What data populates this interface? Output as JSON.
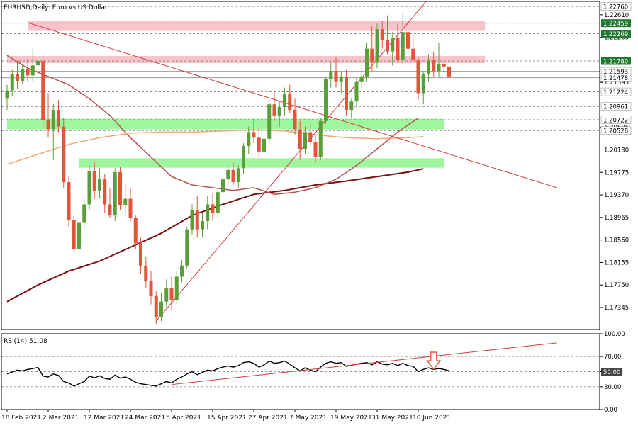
{
  "window": {
    "title": "EURUSD,Daily: Euro vs US Dollar"
  },
  "chart_data": [
    {
      "type": "candlestick",
      "title": "EURUSD,Daily: Euro vs US Dollar",
      "ylim": [
        1.1695,
        1.2285
      ],
      "y_ticks": [
        1.2261,
        1.22205,
        1.21395,
        1.20585,
        1.2018,
        1.19775,
        1.1937,
        1.18965,
        1.1856,
        1.18155,
        1.1775,
        1.17345
      ],
      "y_tick_labels": [
        "1.22610",
        "1.22205",
        "1.21395",
        "1.20585",
        "1.20180",
        "1.19775",
        "1.19370",
        "1.18965",
        "1.18560",
        "1.18155",
        "1.17750",
        "1.17345"
      ],
      "x_tick_labels": [
        {
          "index": 0,
          "label": "18 Feb 2021"
        },
        {
          "index": 8,
          "label": "2 Mar 2021"
        },
        {
          "index": 16,
          "label": "12 Mar 2021"
        },
        {
          "index": 24,
          "label": "24 Mar 2021"
        },
        {
          "index": 32,
          "label": "5 Apr 2021"
        },
        {
          "index": 40,
          "label": "15 Apr 2021"
        },
        {
          "index": 48,
          "label": "27 Apr 2021"
        },
        {
          "index": 56,
          "label": "7 May 2021"
        },
        {
          "index": 64,
          "label": "19 May 2021"
        },
        {
          "index": 72,
          "label": "31 May 2021"
        },
        {
          "index": 80,
          "label": "10 Jun 2021"
        }
      ],
      "price_lines": [
        {
          "value": 1.2276,
          "label": "1.22760",
          "style": "dashed"
        },
        {
          "value": 1.22459,
          "label": "1.22459",
          "style": "dashed",
          "highlight": true
        },
        {
          "value": 1.22269,
          "label": "1.22269",
          "style": "dashed",
          "highlight": true
        },
        {
          "value": 1.2178,
          "label": "1.21780",
          "style": "dashed",
          "highlight": true
        },
        {
          "value": 1.21593,
          "label": "1.21593",
          "style": "solid"
        },
        {
          "value": 1.21478,
          "label": "1.21478",
          "style": "solid"
        },
        {
          "value": 1.21224,
          "label": "1.21224",
          "style": "dashed"
        },
        {
          "value": 1.20961,
          "label": "1.20961",
          "style": "dashed"
        },
        {
          "value": 1.20722,
          "label": "1.20722",
          "style": "dashed"
        },
        {
          "value": 1.20528,
          "label": "1.20528",
          "style": "dashed"
        }
      ],
      "zones": [
        {
          "kind": "resistance",
          "x_from": 4.0,
          "x_to": 93.0,
          "y_low": 1.2232,
          "y_high": 1.225,
          "color": "#f9c0c8"
        },
        {
          "kind": "resistance",
          "x_from": 0.0,
          "x_to": 93.0,
          "y_low": 1.2174,
          "y_high": 1.2187,
          "color": "#f9c0c8"
        },
        {
          "kind": "support",
          "x_from": 0.0,
          "x_to": 85.0,
          "y_low": 1.2055,
          "y_high": 1.2074,
          "color": "#9af59a"
        },
        {
          "kind": "support",
          "x_from": 14.0,
          "x_to": 85.0,
          "y_low": 1.1986,
          "y_high": 1.2003,
          "color": "#9af59a"
        }
      ],
      "trendlines": [
        {
          "from": [
            4.0,
            1.2247
          ],
          "to": [
            107.0,
            1.195
          ],
          "color": "#d43a3a"
        },
        {
          "from": [
            29.0,
            1.171
          ],
          "to": [
            82.0,
            1.229
          ],
          "color": "#d43a3a"
        }
      ],
      "moving_averages": [
        {
          "color": "#7a1010",
          "width": 2.0,
          "points": [
            [
              0,
              1.1745
            ],
            [
              6,
              1.1775
            ],
            [
              12,
              1.18
            ],
            [
              18,
              1.1818
            ],
            [
              24,
              1.1843
            ],
            [
              30,
              1.1868
            ],
            [
              36,
              1.19
            ],
            [
              42,
              1.192
            ],
            [
              48,
              1.1938
            ],
            [
              54,
              1.1945
            ],
            [
              60,
              1.1955
            ],
            [
              66,
              1.1962
            ],
            [
              72,
              1.197
            ],
            [
              78,
              1.1978
            ],
            [
              81,
              1.1984
            ]
          ]
        },
        {
          "color": "#b55050",
          "width": 1.5,
          "points": [
            [
              0,
              1.2188
            ],
            [
              4,
              1.2165
            ],
            [
              8,
              1.215
            ],
            [
              12,
              1.2135
            ],
            [
              16,
              1.211
            ],
            [
              20,
              1.208
            ],
            [
              24,
              1.204
            ],
            [
              28,
              1.2005
            ],
            [
              32,
              1.197
            ],
            [
              36,
              1.1955
            ],
            [
              40,
              1.195
            ],
            [
              44,
              1.1945
            ],
            [
              48,
              1.195
            ],
            [
              52,
              1.1938
            ],
            [
              56,
              1.1942
            ],
            [
              60,
              1.195
            ],
            [
              64,
              1.1965
            ],
            [
              68,
              1.199
            ],
            [
              72,
              1.202
            ],
            [
              76,
              1.205
            ],
            [
              80,
              1.2075
            ]
          ]
        },
        {
          "color": "#f0a878",
          "width": 1.5,
          "points": [
            [
              0,
              1.1992
            ],
            [
              6,
              1.201
            ],
            [
              12,
              1.2028
            ],
            [
              18,
              1.204
            ],
            [
              24,
              1.2048
            ],
            [
              30,
              1.205
            ],
            [
              36,
              1.205
            ],
            [
              42,
              1.2052
            ],
            [
              48,
              1.2054
            ],
            [
              54,
              1.2052
            ],
            [
              60,
              1.2045
            ],
            [
              66,
              1.204
            ],
            [
              72,
              1.2038
            ],
            [
              78,
              1.204
            ],
            [
              81,
              1.2042
            ]
          ]
        }
      ],
      "candles": [
        [
          1.211,
          1.2135,
          1.209,
          1.2125
        ],
        [
          1.2125,
          1.2162,
          1.2115,
          1.2155
        ],
        [
          1.2155,
          1.2178,
          1.2128,
          1.2142
        ],
        [
          1.2142,
          1.217,
          1.2136,
          1.2164
        ],
        [
          1.2164,
          1.2182,
          1.214,
          1.2152
        ],
        [
          1.2152,
          1.22,
          1.214,
          1.217
        ],
        [
          1.217,
          1.2232,
          1.215,
          1.2178
        ],
        [
          1.2178,
          1.2184,
          1.206,
          1.2072
        ],
        [
          1.2072,
          1.212,
          1.204,
          1.2055
        ],
        [
          1.2055,
          1.21,
          1.2,
          1.209
        ],
        [
          1.209,
          1.2108,
          1.205,
          1.206
        ],
        [
          1.206,
          1.2075,
          1.195,
          1.196
        ],
        [
          1.196,
          1.197,
          1.188,
          1.1892
        ],
        [
          1.1892,
          1.19,
          1.1835,
          1.184
        ],
        [
          1.184,
          1.19,
          1.183,
          1.1888
        ],
        [
          1.1888,
          1.193,
          1.1878,
          1.192
        ],
        [
          1.192,
          1.199,
          1.191,
          1.198
        ],
        [
          1.198,
          1.1995,
          1.193,
          1.1945
        ],
        [
          1.1945,
          1.1985,
          1.193,
          1.1965
        ],
        [
          1.1965,
          1.1975,
          1.1905,
          1.192
        ],
        [
          1.192,
          1.195,
          1.1895,
          1.19
        ],
        [
          1.19,
          1.1985,
          1.189,
          1.1978
        ],
        [
          1.1978,
          1.1988,
          1.191,
          1.1918
        ],
        [
          1.1918,
          1.1958,
          1.1898,
          1.193
        ],
        [
          1.193,
          1.195,
          1.189,
          1.1896
        ],
        [
          1.1896,
          1.19,
          1.184,
          1.185
        ],
        [
          1.185,
          1.186,
          1.1795,
          1.181
        ],
        [
          1.181,
          1.1825,
          1.177,
          1.1782
        ],
        [
          1.1782,
          1.18,
          1.174,
          1.1755
        ],
        [
          1.1755,
          1.1765,
          1.1705,
          1.1718
        ],
        [
          1.1718,
          1.176,
          1.171,
          1.1745
        ],
        [
          1.1745,
          1.1785,
          1.1735,
          1.177
        ],
        [
          1.177,
          1.179,
          1.173,
          1.1748
        ],
        [
          1.1748,
          1.18,
          1.174,
          1.179
        ],
        [
          1.179,
          1.182,
          1.178,
          1.181
        ],
        [
          1.181,
          1.188,
          1.1805,
          1.1875
        ],
        [
          1.1875,
          1.192,
          1.1865,
          1.191
        ],
        [
          1.191,
          1.1935,
          1.186,
          1.1875
        ],
        [
          1.1875,
          1.1905,
          1.186,
          1.189
        ],
        [
          1.189,
          1.1935,
          1.1875,
          1.192
        ],
        [
          1.192,
          1.194,
          1.189,
          1.1905
        ],
        [
          1.1905,
          1.195,
          1.1895,
          1.1942
        ],
        [
          1.1942,
          1.1975,
          1.1935,
          1.1965
        ],
        [
          1.1965,
          1.199,
          1.1955,
          1.1982
        ],
        [
          1.1982,
          1.1995,
          1.1955,
          1.196
        ],
        [
          1.196,
          1.199,
          1.195,
          1.1985
        ],
        [
          1.1985,
          1.203,
          1.1975,
          1.2025
        ],
        [
          1.2025,
          1.206,
          1.201,
          1.205
        ],
        [
          1.205,
          1.2075,
          1.203,
          1.204
        ],
        [
          1.204,
          1.206,
          1.2005,
          1.2015
        ],
        [
          1.2015,
          1.205,
          1.2005,
          1.2038
        ],
        [
          1.2038,
          1.211,
          1.203,
          1.21
        ],
        [
          1.21,
          1.2125,
          1.207,
          1.208
        ],
        [
          1.208,
          1.2105,
          1.206,
          1.2095
        ],
        [
          1.2095,
          1.213,
          1.208,
          1.2118
        ],
        [
          1.2118,
          1.2135,
          1.2085,
          1.209
        ],
        [
          1.209,
          1.211,
          1.2045,
          1.2055
        ],
        [
          1.2055,
          1.207,
          1.2,
          1.202
        ],
        [
          1.202,
          1.206,
          1.201,
          1.205
        ],
        [
          1.205,
          1.2065,
          1.2025,
          1.2032
        ],
        [
          1.2032,
          1.2045,
          1.1995,
          1.2005
        ],
        [
          1.2005,
          1.2075,
          1.2,
          1.207
        ],
        [
          1.207,
          1.215,
          1.2065,
          1.2145
        ],
        [
          1.2145,
          1.2175,
          1.213,
          1.216
        ],
        [
          1.216,
          1.2185,
          1.213,
          1.214
        ],
        [
          1.214,
          1.216,
          1.212,
          1.215
        ],
        [
          1.215,
          1.2162,
          1.208,
          1.209
        ],
        [
          1.209,
          1.211,
          1.2075,
          1.2105
        ],
        [
          1.2105,
          1.215,
          1.2095,
          1.214
        ],
        [
          1.214,
          1.2165,
          1.2125,
          1.215
        ],
        [
          1.215,
          1.221,
          1.214,
          1.22
        ],
        [
          1.22,
          1.224,
          1.216,
          1.2175
        ],
        [
          1.2175,
          1.2245,
          1.2165,
          1.2235
        ],
        [
          1.2235,
          1.225,
          1.22,
          1.2215
        ],
        [
          1.2215,
          1.226,
          1.219,
          1.2195
        ],
        [
          1.2195,
          1.223,
          1.217,
          1.222
        ],
        [
          1.222,
          1.2245,
          1.2175,
          1.218
        ],
        [
          1.218,
          1.2265,
          1.217,
          1.223
        ],
        [
          1.223,
          1.225,
          1.2195,
          1.22
        ],
        [
          1.22,
          1.2225,
          1.2175,
          1.218
        ],
        [
          1.218,
          1.2185,
          1.2108,
          1.212
        ],
        [
          1.212,
          1.216,
          1.21,
          1.2155
        ],
        [
          1.2155,
          1.219,
          1.214,
          1.218
        ],
        [
          1.218,
          1.2195,
          1.215,
          1.216
        ],
        [
          1.216,
          1.221,
          1.215,
          1.2172
        ],
        [
          1.2172,
          1.2178,
          1.2158,
          1.2168
        ],
        [
          1.2168,
          1.2172,
          1.2148,
          1.215
        ]
      ]
    },
    {
      "type": "line",
      "title": "RSI(14) 51.08",
      "ylim": [
        0,
        100
      ],
      "y_ticks": [
        100,
        70,
        50,
        30,
        0
      ],
      "y_tick_labels": [
        "100.00",
        "70.00",
        "50.00",
        "30.00",
        "0.00"
      ],
      "levels": [
        {
          "value": 70,
          "style": "dashed"
        },
        {
          "value": 50,
          "style": "dashed",
          "label": "50.00",
          "highlight": true
        },
        {
          "value": 30,
          "style": "dashed"
        }
      ],
      "values": [
        47.0,
        49.5,
        52.0,
        51.0,
        53.0,
        54.0,
        55.5,
        44.0,
        43.0,
        47.0,
        45.0,
        37.0,
        35.0,
        31.0,
        34.0,
        37.0,
        44.0,
        42.0,
        44.5,
        41.0,
        40.0,
        45.5,
        41.5,
        43.0,
        40.0,
        36.0,
        34.0,
        33.0,
        32.0,
        31.0,
        34.0,
        37.0,
        35.0,
        40.0,
        43.0,
        47.0,
        50.0,
        46.0,
        49.0,
        52.0,
        51.0,
        54.0,
        56.0,
        57.5,
        56.0,
        58.0,
        62.0,
        63.0,
        61.0,
        56.0,
        59.0,
        64.0,
        61.0,
        62.0,
        64.0,
        60.0,
        55.0,
        51.0,
        55.0,
        52.0,
        50.0,
        56.0,
        61.0,
        63.0,
        61.0,
        62.0,
        57.0,
        58.5,
        60.0,
        61.0,
        62.0,
        59.0,
        63.0,
        60.0,
        59.0,
        61.0,
        58.0,
        61.0,
        58.0,
        57.0,
        50.0,
        53.0,
        55.0,
        53.0,
        54.0,
        53.0,
        51.08
      ],
      "trendline": {
        "from": [
          32.0,
          33.0
        ],
        "to": [
          107.0,
          88.0
        ],
        "color": "#d43a3a"
      },
      "arrow": {
        "direction": "down",
        "x": 83.0,
        "color": "#e8663c"
      }
    }
  ]
}
